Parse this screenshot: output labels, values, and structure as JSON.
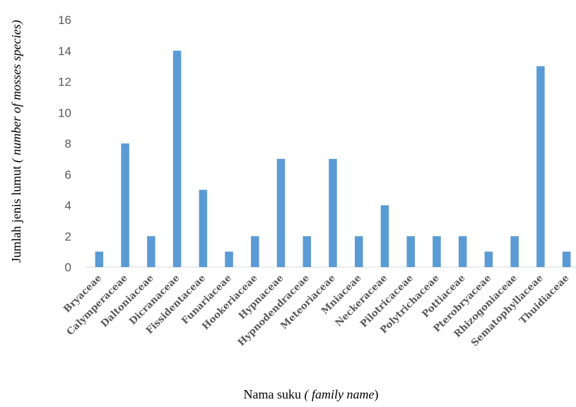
{
  "chart_data": {
    "type": "bar",
    "categories": [
      "Bryaceae",
      "Calymperaceae",
      "Daltoniaceae",
      "Dicranaceae",
      "Fissidentaceae",
      "Funariaceae",
      "Hookeriaceae",
      "Hypnaceae",
      "Hypnodendraceae",
      "Meteoriaceae",
      "Mniaceae",
      "Neckeraceae",
      "Pilotricaceae",
      "Polytrichaceae",
      "Pottiaceae",
      "Pterobryaceae",
      "Rhizogoniaceae",
      "Sematophyllaceae",
      "Thuidiaceae"
    ],
    "values": [
      1,
      8,
      2,
      14,
      5,
      1,
      2,
      7,
      2,
      7,
      2,
      4,
      2,
      2,
      2,
      1,
      2,
      13,
      1
    ],
    "ylim": [
      0,
      16
    ],
    "yticks": [
      "0",
      "2",
      "4",
      "6",
      "8",
      "10",
      "12",
      "14",
      "16"
    ],
    "xlabel": {
      "main": "Nama suku ",
      "italic": "( family name",
      "close": ")"
    },
    "ylabel": {
      "main": "Jumlah jenis lumut  ",
      "italic": "( number of mosses  species)"
    },
    "bar_color": "#5B9BD5",
    "grid": false,
    "legend": "none"
  }
}
